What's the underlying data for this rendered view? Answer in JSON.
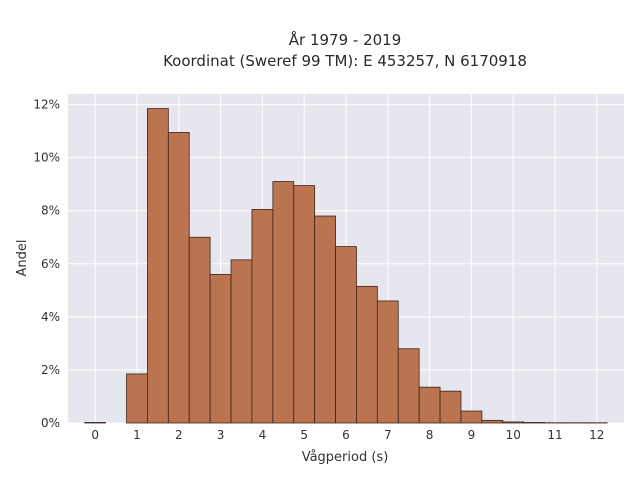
{
  "chart_data": {
    "type": "bar",
    "title_lines": [
      "År 1979 - 2019",
      "Koordinat (Sweref 99 TM): E 453257, N 6170918"
    ],
    "xlabel": "Vågperiod (s)",
    "ylabel": "Andel",
    "xlim": [
      -0.65,
      12.65
    ],
    "ylim": [
      0,
      12.4
    ],
    "x_ticks": [
      0,
      1,
      2,
      3,
      4,
      5,
      6,
      7,
      8,
      9,
      10,
      11,
      12
    ],
    "x_tick_labels": [
      "0",
      "1",
      "2",
      "3",
      "4",
      "5",
      "6",
      "7",
      "8",
      "9",
      "10",
      "11",
      "12"
    ],
    "y_ticks": [
      0,
      2,
      4,
      6,
      8,
      10,
      12
    ],
    "y_tick_labels": [
      "0%",
      "2%",
      "4%",
      "6%",
      "8%",
      "10%",
      "12%"
    ],
    "bin_width": 0.5,
    "bins": [
      {
        "x0": -0.25,
        "value": 0.02
      },
      {
        "x0": 0.25,
        "value": 0.0
      },
      {
        "x0": 0.75,
        "value": 1.85
      },
      {
        "x0": 1.25,
        "value": 11.85
      },
      {
        "x0": 1.75,
        "value": 10.95
      },
      {
        "x0": 2.25,
        "value": 7.0
      },
      {
        "x0": 2.75,
        "value": 5.6
      },
      {
        "x0": 3.25,
        "value": 6.15
      },
      {
        "x0": 3.75,
        "value": 8.05
      },
      {
        "x0": 4.25,
        "value": 9.1
      },
      {
        "x0": 4.75,
        "value": 8.95
      },
      {
        "x0": 5.25,
        "value": 7.8
      },
      {
        "x0": 5.75,
        "value": 6.65
      },
      {
        "x0": 6.25,
        "value": 5.15
      },
      {
        "x0": 6.75,
        "value": 4.6
      },
      {
        "x0": 7.25,
        "value": 2.8
      },
      {
        "x0": 7.75,
        "value": 1.35
      },
      {
        "x0": 8.25,
        "value": 1.2
      },
      {
        "x0": 8.75,
        "value": 0.45
      },
      {
        "x0": 9.25,
        "value": 0.1
      },
      {
        "x0": 9.75,
        "value": 0.04
      },
      {
        "x0": 10.25,
        "value": 0.02
      },
      {
        "x0": 10.75,
        "value": 0.01
      },
      {
        "x0": 11.25,
        "value": 0.01
      },
      {
        "x0": 11.75,
        "value": 0.01
      }
    ],
    "grid": true,
    "colors": {
      "bar_fill": "#bb7450",
      "bar_edge": "#3f2418",
      "plot_bg": "#e6e6ef",
      "grid": "#ffffff"
    }
  }
}
